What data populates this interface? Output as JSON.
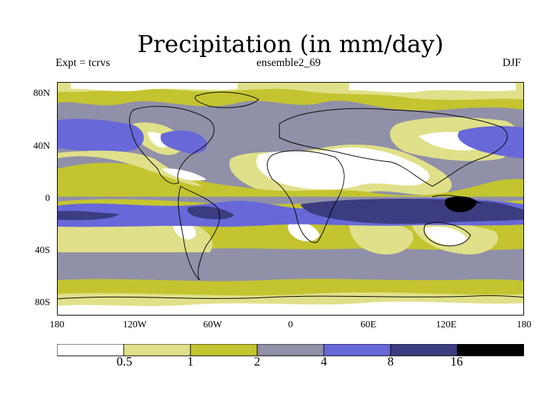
{
  "title": "Precipitation (in mm/day)",
  "experiment_label": "Expt = tcrvs",
  "run_label": "ensemble2_69",
  "season_label": "DJF",
  "lat_ticks": [
    "80N",
    "40N",
    "0",
    "40S",
    "80S"
  ],
  "lon_ticks": [
    "180",
    "120W",
    "60W",
    "0",
    "60E",
    "120E",
    "180"
  ],
  "colorbar": {
    "thresholds": [
      "0.5",
      "1",
      "2",
      "4",
      "8",
      "16"
    ],
    "colors": [
      "#ffffff",
      "#e0e08a",
      "#c4c430",
      "#9090a8",
      "#6868d8",
      "#3c3c80",
      "#000000"
    ]
  },
  "map_extent": {
    "lon_min": -180,
    "lon_max": 180,
    "lat_min": -90,
    "lat_max": 90
  }
}
